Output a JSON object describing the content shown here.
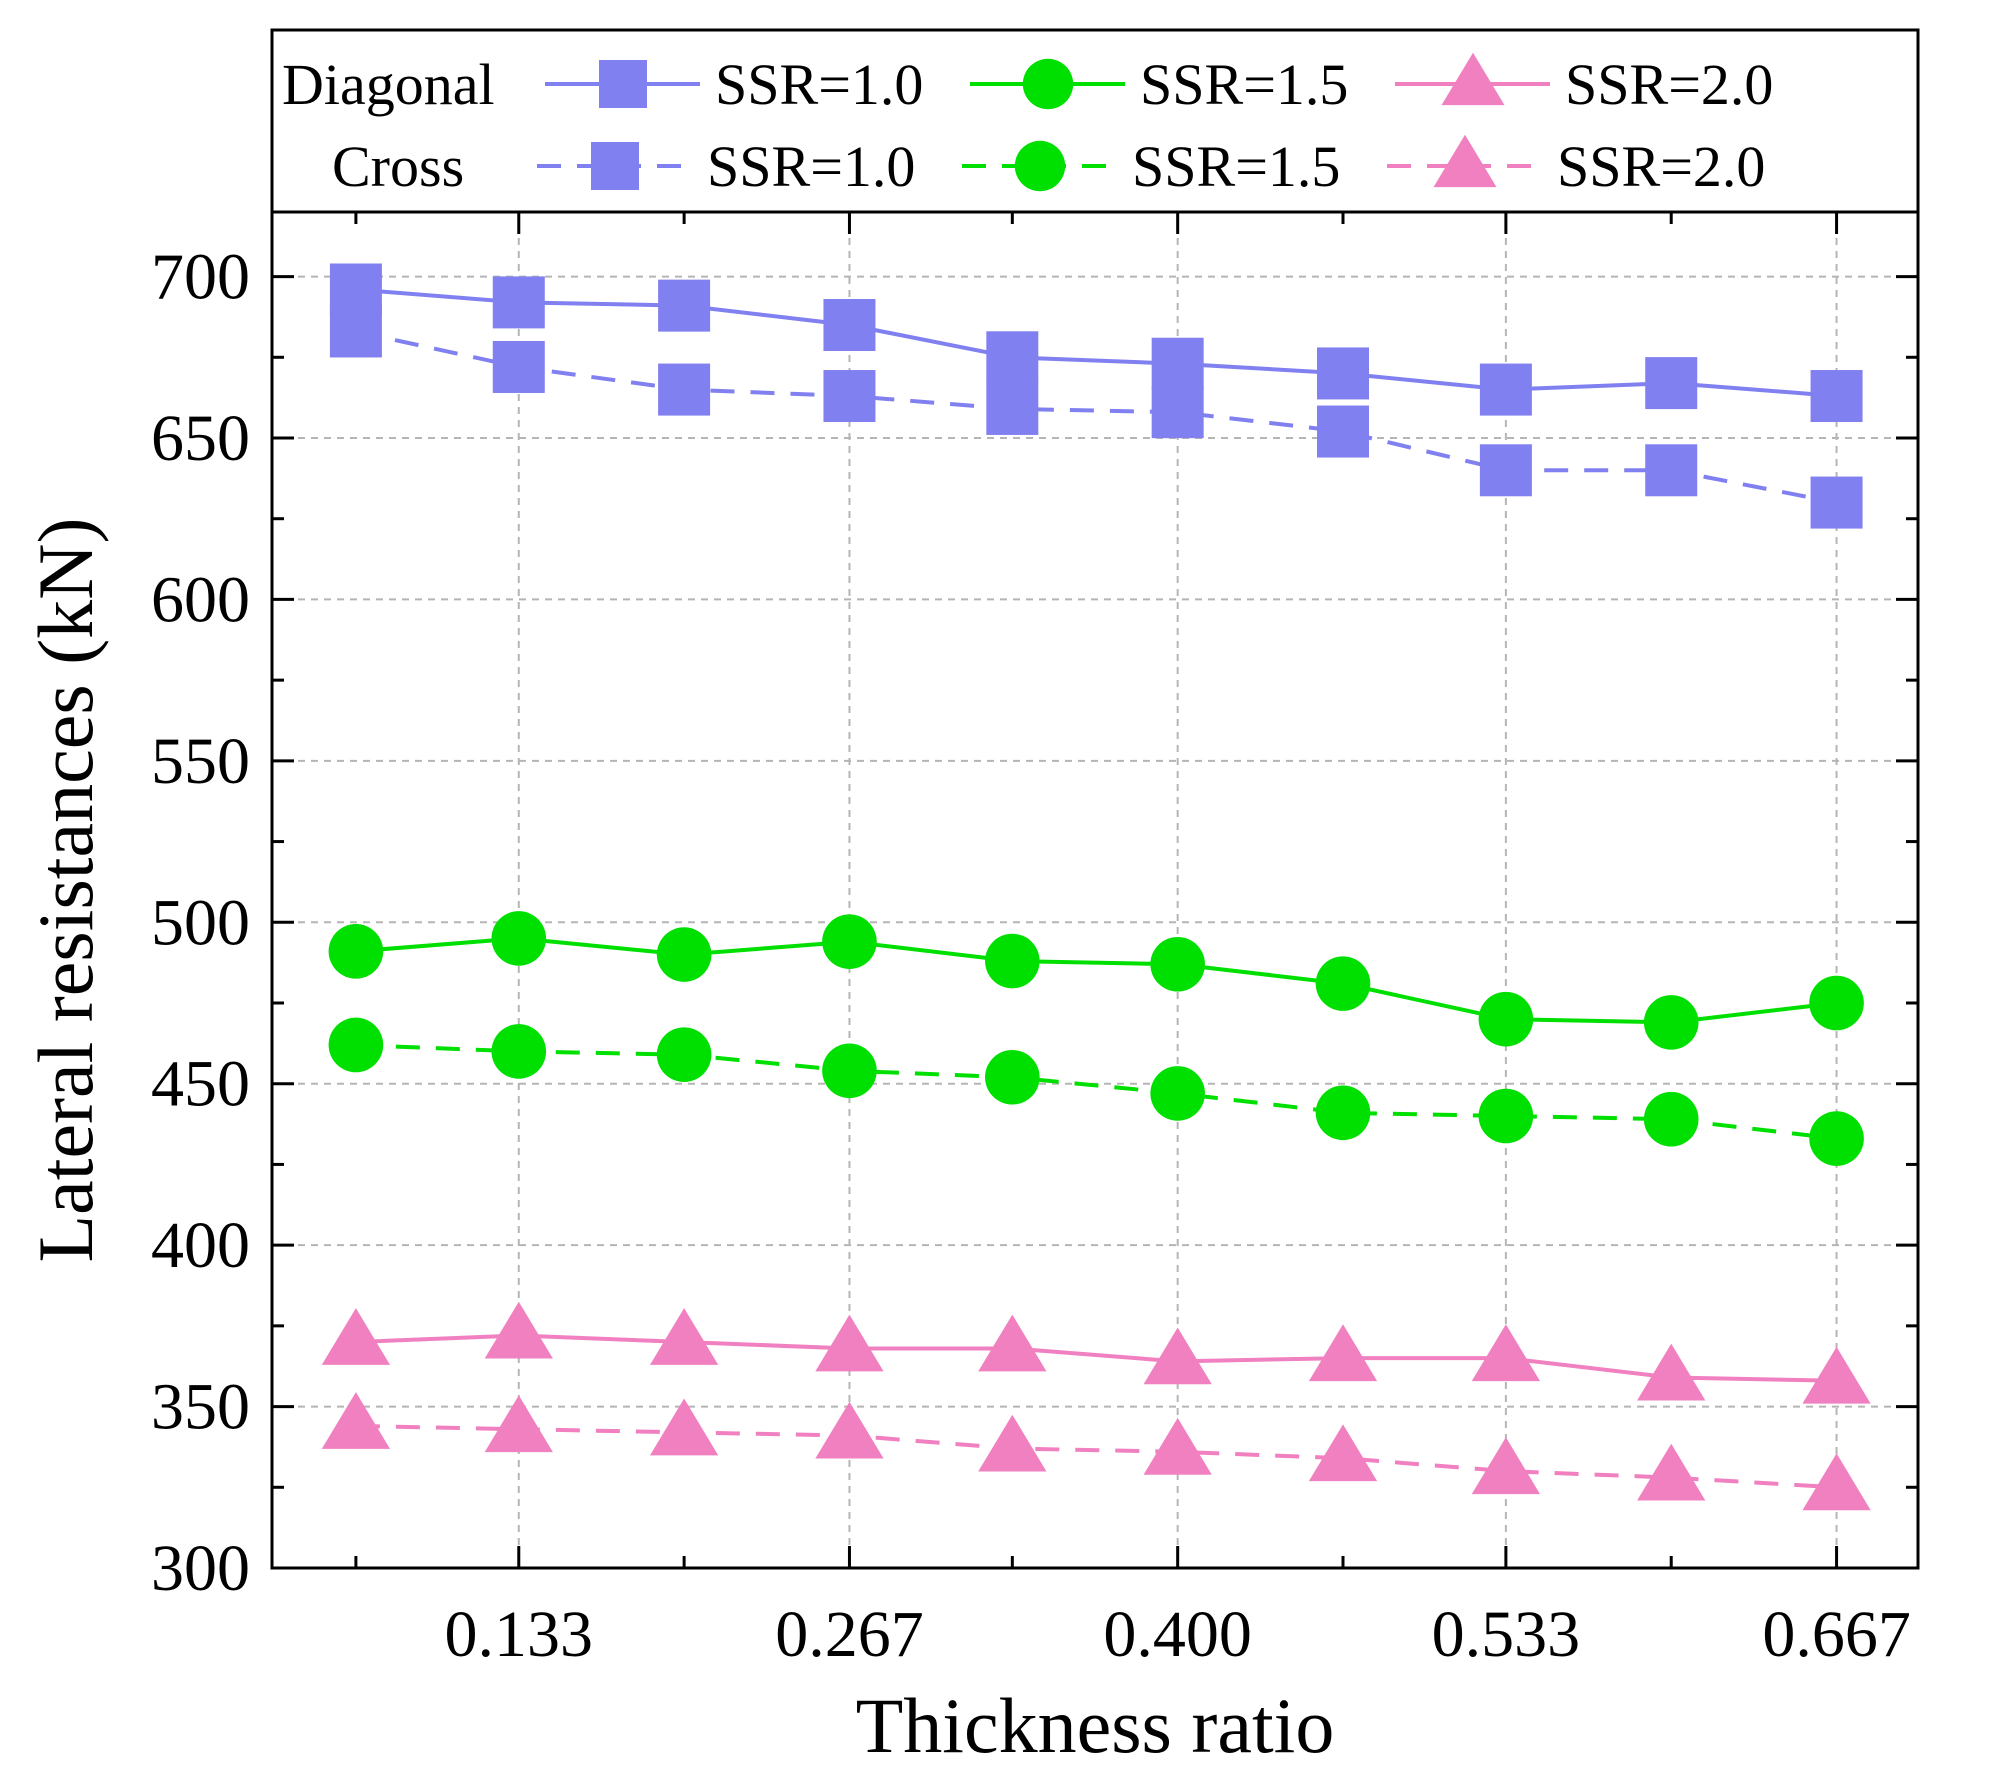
{
  "chart_data": {
    "type": "line",
    "xlabel": "Thickness ratio",
    "ylabel": "Lateral resistances (kN)",
    "xlim": [
      0.033,
      0.7
    ],
    "ylim": [
      300,
      720
    ],
    "x_ticks": [
      0.133,
      0.267,
      0.4,
      0.533,
      0.667
    ],
    "x_tick_labels": [
      "0.133",
      "0.267",
      "0.400",
      "0.533",
      "0.667"
    ],
    "y_ticks": [
      300,
      350,
      400,
      450,
      500,
      550,
      600,
      650,
      700
    ],
    "y_tick_labels": [
      "300",
      "350",
      "400",
      "450",
      "500",
      "550",
      "600",
      "650",
      "700"
    ],
    "grid": true,
    "legend_position": "top",
    "legend_groups": [
      "Diagonal",
      "Cross"
    ],
    "x": [
      0.067,
      0.133,
      0.2,
      0.267,
      0.333,
      0.4,
      0.467,
      0.533,
      0.6,
      0.667
    ],
    "series": [
      {
        "name": "SSR=1.0",
        "group": "Diagonal",
        "linestyle": "solid",
        "marker": "square",
        "color": "#8080f0",
        "values": [
          696,
          692,
          691,
          685,
          675,
          673,
          670,
          665,
          667,
          663
        ]
      },
      {
        "name": "SSR=1.5",
        "group": "Diagonal",
        "linestyle": "solid",
        "marker": "circle",
        "color": "#00e000",
        "values": [
          491,
          495,
          490,
          494,
          488,
          487,
          481,
          470,
          469,
          475
        ]
      },
      {
        "name": "SSR=2.0",
        "group": "Diagonal",
        "linestyle": "solid",
        "marker": "triangle",
        "color": "#f080c0",
        "values": [
          370,
          372,
          370,
          368,
          368,
          364,
          365,
          365,
          359,
          358
        ]
      },
      {
        "name": "SSR=1.0",
        "group": "Cross",
        "linestyle": "dashed",
        "marker": "square",
        "color": "#8080f0",
        "values": [
          683,
          672,
          665,
          663,
          659,
          658,
          652,
          640,
          640,
          630
        ]
      },
      {
        "name": "SSR=1.5",
        "group": "Cross",
        "linestyle": "dashed",
        "marker": "circle",
        "color": "#00e000",
        "values": [
          462,
          460,
          459,
          454,
          452,
          447,
          441,
          440,
          439,
          433
        ]
      },
      {
        "name": "SSR=2.0",
        "group": "Cross",
        "linestyle": "dashed",
        "marker": "triangle",
        "color": "#f080c0",
        "values": [
          344,
          343,
          342,
          341,
          337,
          336,
          334,
          330,
          328,
          325
        ]
      }
    ]
  }
}
